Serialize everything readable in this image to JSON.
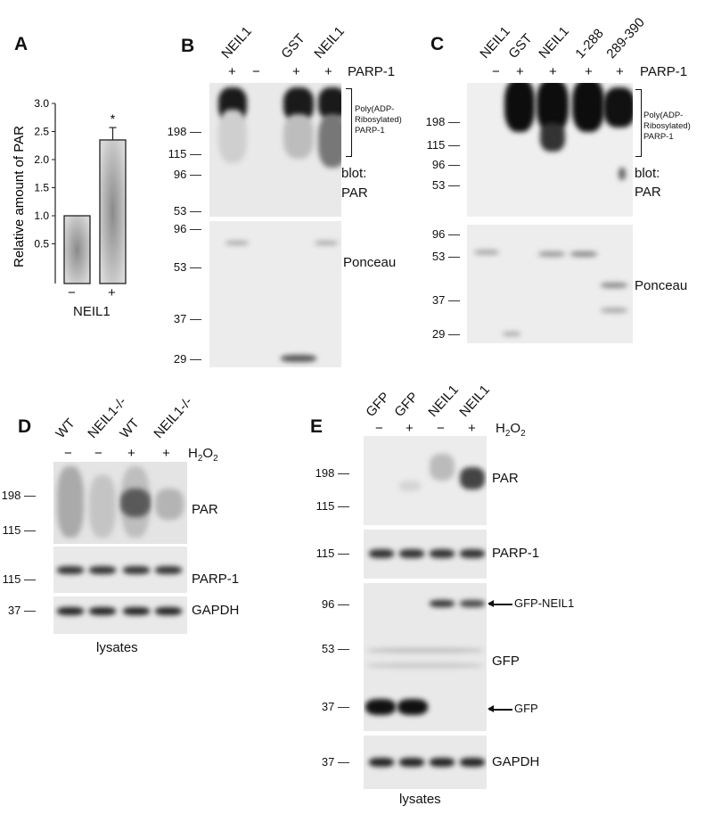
{
  "panels": {
    "A": {
      "label": "A",
      "xlabel": "NEIL1",
      "signs": [
        "−",
        "+"
      ]
    },
    "B": {
      "label": "B",
      "lanes": [
        "NEIL1",
        "GST",
        "NEIL1"
      ],
      "signs": [
        "+",
        "−",
        "+",
        "+"
      ],
      "treatment": "PARP-1",
      "mw_upper": [
        "198",
        "115",
        "96",
        "53"
      ],
      "mw_lower": [
        "96",
        "53",
        "37",
        "29"
      ],
      "bracket_text": "Poly(ADP-Ribosylated) PARP-1",
      "blot_line1": "blot:",
      "blot_line2": "PAR",
      "lower_label": "Ponceau"
    },
    "C": {
      "label": "C",
      "lanes": [
        "NEIL1",
        "GST",
        "NEIL1",
        "1-288",
        "289-390"
      ],
      "signs": [
        "−",
        "+",
        "+",
        "+",
        "+"
      ],
      "treatment": "PARP-1",
      "mw_upper": [
        "198",
        "115",
        "96",
        "53"
      ],
      "mw_lower": [
        "96",
        "53",
        "37",
        "29"
      ],
      "bracket_text": "Poly(ADP-Ribosylated) PARP-1",
      "blot_line1": "blot:",
      "blot_line2": "PAR",
      "lower_label": "Ponceau"
    },
    "D": {
      "label": "D",
      "lanes": [
        "WT",
        "NEIL1-/-",
        "WT",
        "NEIL1-/-"
      ],
      "signs": [
        "−",
        "−",
        "+",
        "+"
      ],
      "treatment_main": "H",
      "treatment_sub1": "2",
      "treatment_mid": "O",
      "treatment_sub2": "2",
      "mw_par": [
        "198",
        "115"
      ],
      "mw_parp": [
        "115"
      ],
      "mw_gapdh": [
        "37"
      ],
      "blots": [
        "PAR",
        "PARP-1",
        "GAPDH"
      ],
      "footer": "lysates"
    },
    "E": {
      "label": "E",
      "lanes": [
        "GFP",
        "GFP",
        "NEIL1",
        "NEIL1"
      ],
      "signs": [
        "−",
        "+",
        "−",
        "+"
      ],
      "treatment_main": "H",
      "treatment_sub1": "2",
      "treatment_mid": "O",
      "treatment_sub2": "2",
      "mw_par": [
        "198",
        "115"
      ],
      "mw_parp": [
        "115"
      ],
      "mw_gfp": [
        "96",
        "53",
        "37"
      ],
      "mw_gapdh": [
        "37"
      ],
      "blots": [
        "PAR",
        "PARP-1",
        "GFP",
        "GAPDH"
      ],
      "arrow_labels": [
        "GFP-NEIL1",
        "GFP"
      ],
      "footer": "lysates"
    }
  },
  "chart_data": {
    "type": "bar",
    "categories": [
      "−",
      "+"
    ],
    "values": [
      1.0,
      2.35
    ],
    "errors": [
      0,
      0.22
    ],
    "annotations": [
      "",
      "*"
    ],
    "xlabel": "NEIL1",
    "ylabel": "Relative amount of PAR",
    "ylim": [
      0,
      3.0
    ],
    "yticks": [
      "0.5",
      "1.0",
      "1.5",
      "2.0",
      "2.5",
      "3.0"
    ],
    "grid": false,
    "bar_fill": "gradient gray"
  }
}
